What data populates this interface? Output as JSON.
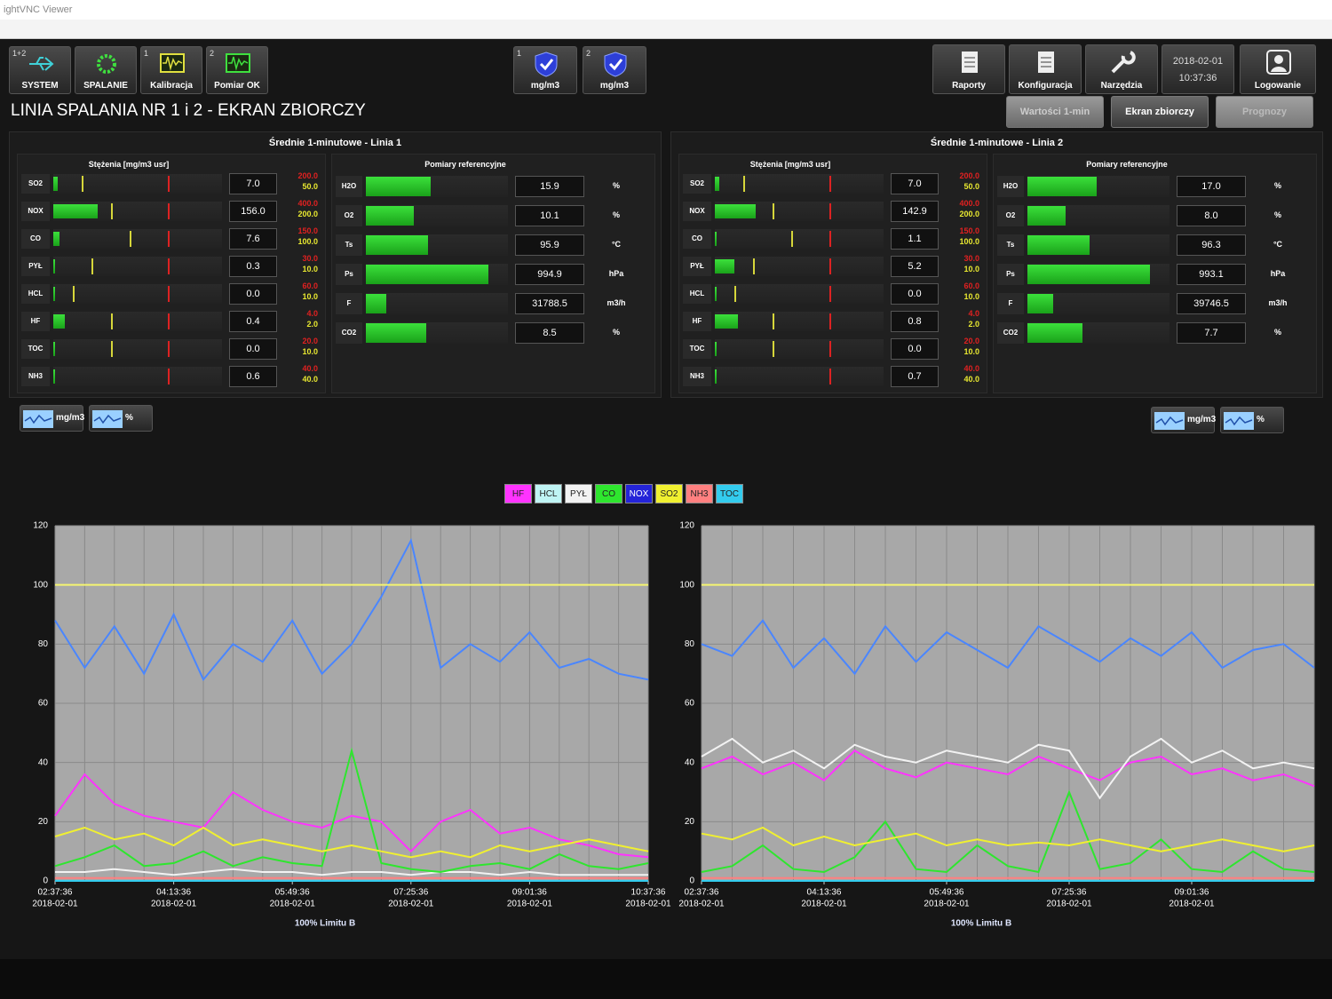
{
  "window": {
    "title": "ightVNC Viewer"
  },
  "header": {
    "buttons": [
      {
        "badge": "1+2",
        "label": "SYSTEM"
      },
      {
        "label": "SPALANIE"
      },
      {
        "badge": "1",
        "label": "Kalibracja"
      },
      {
        "badge": "2",
        "label": "Pomiar OK"
      }
    ],
    "status": [
      {
        "badge": "1",
        "label": "mg/m3"
      },
      {
        "badge": "2",
        "label": "mg/m3"
      }
    ],
    "menu": [
      "Raporty",
      "Konfiguracja",
      "Narzędzia"
    ],
    "date": "2018-02-01",
    "time": "10:37:36",
    "login": "Logowanie"
  },
  "title": "LINIA SPALANIA NR 1 i 2 - EKRAN ZBIORCZY",
  "tabs": [
    "Wartości 1-min",
    "Ekran zbiorczy",
    "Prognozy"
  ],
  "lines": [
    {
      "title": "Średnie 1-minutowe - Linia 1",
      "concentrations": {
        "title": "Stężenia [mg/m3 usr]",
        "rows": [
          {
            "name": "SO2",
            "value": "7.0",
            "limit_high": "200.0",
            "limit_low": "50.0"
          },
          {
            "name": "NOX",
            "value": "156.0",
            "limit_high": "400.0",
            "limit_low": "200.0"
          },
          {
            "name": "CO",
            "value": "7.6",
            "limit_high": "150.0",
            "limit_low": "100.0"
          },
          {
            "name": "PYŁ",
            "value": "0.3",
            "limit_high": "30.0",
            "limit_low": "10.0"
          },
          {
            "name": "HCL",
            "value": "0.0",
            "limit_high": "60.0",
            "limit_low": "10.0"
          },
          {
            "name": "HF",
            "value": "0.4",
            "limit_high": "4.0",
            "limit_low": "2.0"
          },
          {
            "name": "TOC",
            "value": "0.0",
            "limit_high": "20.0",
            "limit_low": "10.0"
          },
          {
            "name": "NH3",
            "value": "0.6",
            "limit_high": "40.0",
            "limit_low": "40.0"
          }
        ]
      },
      "reference": {
        "title": "Pomiary referencyjne",
        "rows": [
          {
            "name": "H2O",
            "value": "15.9",
            "unit": "%"
          },
          {
            "name": "O2",
            "value": "10.1",
            "unit": "%"
          },
          {
            "name": "Ts",
            "value": "95.9",
            "unit": "°C"
          },
          {
            "name": "Ps",
            "value": "994.9",
            "unit": "hPa"
          },
          {
            "name": "F",
            "value": "31788.5",
            "unit": "m3/h"
          },
          {
            "name": "CO2",
            "value": "8.5",
            "unit": "%"
          }
        ]
      }
    },
    {
      "title": "Średnie 1-minutowe - Linia 2",
      "concentrations": {
        "title": "Stężenia [mg/m3 usr]",
        "rows": [
          {
            "name": "SO2",
            "value": "7.0",
            "limit_high": "200.0",
            "limit_low": "50.0"
          },
          {
            "name": "NOX",
            "value": "142.9",
            "limit_high": "400.0",
            "limit_low": "200.0"
          },
          {
            "name": "CO",
            "value": "1.1",
            "limit_high": "150.0",
            "limit_low": "100.0"
          },
          {
            "name": "PYŁ",
            "value": "5.2",
            "limit_high": "30.0",
            "limit_low": "10.0"
          },
          {
            "name": "HCL",
            "value": "0.0",
            "limit_high": "60.0",
            "limit_low": "10.0"
          },
          {
            "name": "HF",
            "value": "0.8",
            "limit_high": "4.0",
            "limit_low": "2.0"
          },
          {
            "name": "TOC",
            "value": "0.0",
            "limit_high": "20.0",
            "limit_low": "10.0"
          },
          {
            "name": "NH3",
            "value": "0.7",
            "limit_high": "40.0",
            "limit_low": "40.0"
          }
        ]
      },
      "reference": {
        "title": "Pomiary referencyjne",
        "rows": [
          {
            "name": "H2O",
            "value": "17.0",
            "unit": "%"
          },
          {
            "name": "O2",
            "value": "8.0",
            "unit": "%"
          },
          {
            "name": "Ts",
            "value": "96.3",
            "unit": "°C"
          },
          {
            "name": "Ps",
            "value": "993.1",
            "unit": "hPa"
          },
          {
            "name": "F",
            "value": "39746.5",
            "unit": "m3/h"
          },
          {
            "name": "CO2",
            "value": "7.7",
            "unit": "%"
          }
        ]
      }
    }
  ],
  "unit_toggles": [
    "mg/m3",
    "%"
  ],
  "chart_data": [
    {
      "type": "line",
      "date": "2018-02-01",
      "x": [
        "02:37:36",
        "03:01:36",
        "03:25:36",
        "03:49:36",
        "04:13:36",
        "04:37:36",
        "05:01:36",
        "05:25:36",
        "05:49:36",
        "06:13:36",
        "06:37:36",
        "07:01:36",
        "07:25:36",
        "07:49:36",
        "08:13:36",
        "08:37:36",
        "09:01:36",
        "09:25:36",
        "09:49:36",
        "10:13:36",
        "10:37:36"
      ],
      "xlim": [
        "02:37:36",
        "10:37:36"
      ],
      "xticks": [
        "02:37:36",
        "04:13:36",
        "05:49:36",
        "07:25:36",
        "09:01:36",
        "10:37:36"
      ],
      "ylim": [
        0,
        120
      ],
      "yticks": [
        0,
        20,
        40,
        60,
        80,
        100,
        120
      ],
      "grid": true,
      "limit": 100,
      "limit_label": "100% Limitu B",
      "series": [
        {
          "name": "HF",
          "color": "#ff33ff",
          "values": [
            22,
            36,
            26,
            22,
            20,
            18,
            30,
            24,
            20,
            18,
            22,
            20,
            10,
            20,
            24,
            16,
            18,
            14,
            12,
            9,
            8
          ]
        },
        {
          "name": "HCL",
          "color": "#bff4f4",
          "values": [
            0,
            0,
            0,
            0,
            0,
            0,
            0,
            0,
            0,
            0,
            0,
            0,
            0,
            0,
            0,
            0,
            0,
            0,
            0,
            0,
            0
          ]
        },
        {
          "name": "PYŁ",
          "color": "#f2f2f2",
          "values": [
            3,
            3,
            4,
            3,
            2,
            3,
            4,
            3,
            3,
            2,
            3,
            3,
            2,
            3,
            3,
            2,
            3,
            2,
            2,
            2,
            2
          ]
        },
        {
          "name": "CO",
          "color": "#2ee62e",
          "values": [
            5,
            8,
            12,
            5,
            6,
            10,
            5,
            8,
            6,
            5,
            44,
            6,
            4,
            3,
            5,
            6,
            4,
            9,
            5,
            4,
            6
          ]
        },
        {
          "name": "NOX",
          "color": "#4a86ff",
          "values": [
            88,
            72,
            86,
            70,
            90,
            68,
            80,
            74,
            88,
            70,
            80,
            96,
            115,
            72,
            80,
            74,
            84,
            72,
            75,
            70,
            68
          ]
        },
        {
          "name": "SO2",
          "color": "#f0f030",
          "values": [
            15,
            18,
            14,
            16,
            12,
            18,
            12,
            14,
            12,
            10,
            12,
            10,
            8,
            10,
            8,
            12,
            10,
            12,
            14,
            12,
            10
          ]
        },
        {
          "name": "NH3",
          "color": "#ff8080",
          "values": [
            1,
            1,
            1,
            1,
            1,
            1,
            1,
            1,
            1,
            1,
            1,
            1,
            1,
            1,
            1,
            1,
            1,
            1,
            1,
            1,
            1
          ]
        },
        {
          "name": "TOC",
          "color": "#33ccee",
          "values": [
            0,
            0,
            0,
            0,
            0,
            0,
            0,
            0,
            0,
            0,
            0,
            0,
            0,
            0,
            0,
            0,
            0,
            0,
            0,
            0,
            0
          ]
        }
      ]
    },
    {
      "type": "line",
      "date": "2018-02-01",
      "x": [
        "02:37:36",
        "03:01:36",
        "03:25:36",
        "03:49:36",
        "04:13:36",
        "04:37:36",
        "05:01:36",
        "05:25:36",
        "05:49:36",
        "06:13:36",
        "06:37:36",
        "07:01:36",
        "07:25:36",
        "07:49:36",
        "08:13:36",
        "08:37:36",
        "09:01:36",
        "09:25:36",
        "09:49:36",
        "10:13:36",
        "10:37:36"
      ],
      "xlim": [
        "02:37:36",
        "10:37:36"
      ],
      "xticks": [
        "02:37:36",
        "04:13:36",
        "05:49:36",
        "07:25:36",
        "09:01:36"
      ],
      "ylim": [
        0,
        120
      ],
      "yticks": [
        0,
        20,
        40,
        60,
        80,
        100,
        120
      ],
      "grid": true,
      "limit": 100,
      "limit_label": "100% Limitu B",
      "series": [
        {
          "color": "#ff33ff",
          "values": [
            38,
            42,
            36,
            40,
            34,
            44,
            38,
            35,
            40,
            38,
            36,
            42,
            38,
            34,
            40,
            42,
            36,
            38,
            34,
            36,
            32
          ]
        },
        {
          "color": "#bff4f4",
          "values": [
            0,
            0,
            0,
            0,
            0,
            0,
            0,
            0,
            0,
            0,
            0,
            0,
            0,
            0,
            0,
            0,
            0,
            0,
            0,
            0,
            0
          ]
        },
        {
          "color": "#f2f2f2",
          "values": [
            42,
            48,
            40,
            44,
            38,
            46,
            42,
            40,
            44,
            42,
            40,
            46,
            44,
            28,
            42,
            48,
            40,
            44,
            38,
            40,
            38
          ]
        },
        {
          "color": "#2ee62e",
          "values": [
            3,
            5,
            12,
            4,
            3,
            8,
            20,
            4,
            3,
            12,
            5,
            3,
            30,
            4,
            6,
            14,
            4,
            3,
            10,
            4,
            3
          ]
        },
        {
          "color": "#4a86ff",
          "values": [
            80,
            76,
            88,
            72,
            82,
            70,
            86,
            74,
            84,
            78,
            72,
            86,
            80,
            74,
            82,
            76,
            84,
            72,
            78,
            80,
            72
          ]
        },
        {
          "color": "#f0f030",
          "values": [
            16,
            14,
            18,
            12,
            15,
            12,
            14,
            16,
            12,
            14,
            12,
            13,
            12,
            14,
            12,
            10,
            12,
            14,
            12,
            10,
            12
          ]
        },
        {
          "color": "#ff8080",
          "values": [
            1,
            1,
            1,
            1,
            1,
            1,
            1,
            1,
            1,
            1,
            1,
            1,
            1,
            1,
            1,
            1,
            1,
            1,
            1,
            1,
            1
          ]
        },
        {
          "color": "#33ccee",
          "values": [
            0,
            0,
            0,
            0,
            0,
            0,
            0,
            0,
            0,
            0,
            0,
            0,
            0,
            0,
            0,
            0,
            0,
            0,
            0,
            0,
            0
          ]
        }
      ]
    }
  ]
}
